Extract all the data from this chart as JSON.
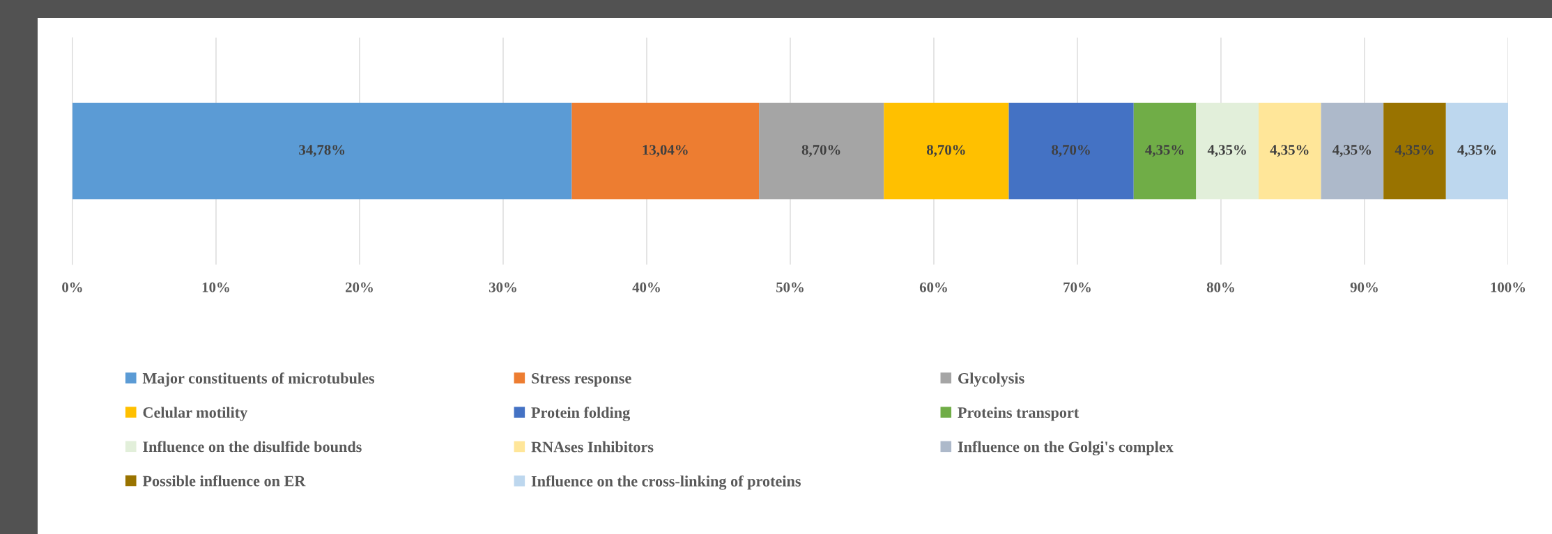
{
  "chart_data": {
    "type": "bar",
    "orientation": "horizontal",
    "stacked": true,
    "categories": [
      null
    ],
    "xlim": [
      0,
      100
    ],
    "xticks": [
      {
        "value": 0,
        "label": "0%"
      },
      {
        "value": 10,
        "label": "10%"
      },
      {
        "value": 20,
        "label": "20%"
      },
      {
        "value": 30,
        "label": "30%"
      },
      {
        "value": 40,
        "label": "40%"
      },
      {
        "value": 50,
        "label": "50%"
      },
      {
        "value": 60,
        "label": "60%"
      },
      {
        "value": 70,
        "label": "70%"
      },
      {
        "value": 80,
        "label": "80%"
      },
      {
        "value": 90,
        "label": "90%"
      },
      {
        "value": 100,
        "label": "100%"
      }
    ],
    "grid": "x",
    "legend": "bottom",
    "series": [
      {
        "name": "Major constituents of microtubules",
        "color": "#5b9bd5",
        "values": [
          34.78
        ],
        "value_labels": [
          "34,78%"
        ]
      },
      {
        "name": "Stress response",
        "color": "#ed7d31",
        "values": [
          13.04
        ],
        "value_labels": [
          "13,04%"
        ]
      },
      {
        "name": "Glycolysis",
        "color": "#a5a5a5",
        "values": [
          8.7
        ],
        "value_labels": [
          "8,70%"
        ]
      },
      {
        "name": "Celular motility",
        "color": "#ffc000",
        "values": [
          8.7
        ],
        "value_labels": [
          "8,70%"
        ]
      },
      {
        "name": "Protein folding",
        "color": "#4472c4",
        "values": [
          8.7
        ],
        "value_labels": [
          "8,70%"
        ]
      },
      {
        "name": "Proteins transport",
        "color": "#70ad47",
        "values": [
          4.35
        ],
        "value_labels": [
          "4,35%"
        ]
      },
      {
        "name": "Influence on the disulfide bounds",
        "color": "#e2efda",
        "values": [
          4.35
        ],
        "value_labels": [
          "4,35%"
        ]
      },
      {
        "name": "RNAses Inhibitors",
        "color": "#ffe699",
        "values": [
          4.35
        ],
        "value_labels": [
          "4,35%"
        ]
      },
      {
        "name": "Influence on the Golgi's complex",
        "color": "#adb9ca",
        "values": [
          4.35
        ],
        "value_labels": [
          "4,35%"
        ]
      },
      {
        "name": "Possible influence on ER",
        "color": "#997300",
        "values": [
          4.35
        ],
        "value_labels": [
          "4,35%"
        ]
      },
      {
        "name": "Influence on the cross-linking of proteins",
        "color": "#bdd7ee",
        "values": [
          4.35
        ],
        "value_labels": [
          "4,35%"
        ]
      }
    ]
  }
}
